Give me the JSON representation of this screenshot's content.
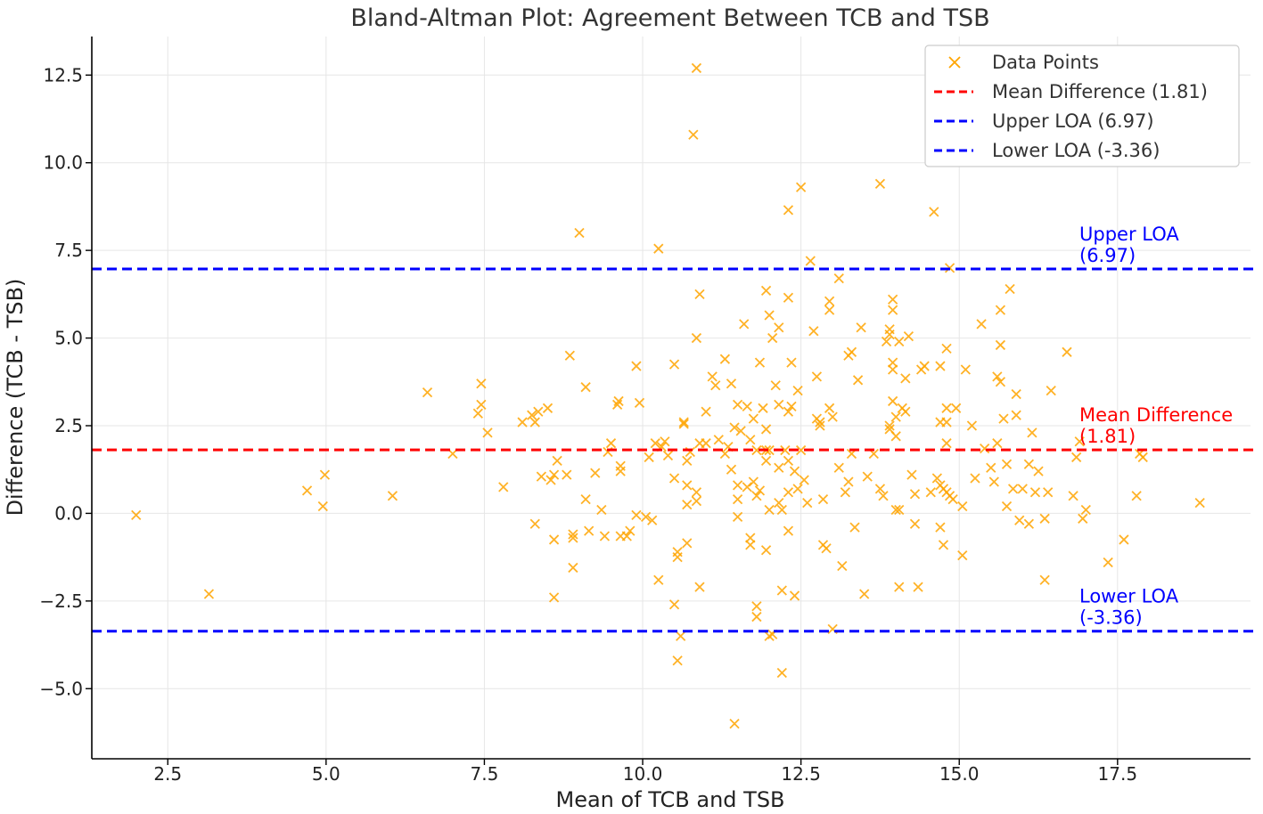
{
  "chart_data": {
    "type": "scatter",
    "title": "Bland-Altman Plot: Agreement Between TCB and TSB",
    "xlabel": "Mean of TCB and TSB",
    "ylabel": "Difference (TCB - TSB)",
    "xlim": [
      1.3,
      19.6
    ],
    "ylim": [
      -7.0,
      13.6
    ],
    "xticks": [
      2.5,
      5.0,
      7.5,
      10.0,
      12.5,
      15.0,
      17.5
    ],
    "xtick_labels": [
      "2.5",
      "5.0",
      "7.5",
      "10.0",
      "12.5",
      "15.0",
      "17.5"
    ],
    "yticks": [
      -5.0,
      -2.5,
      0.0,
      2.5,
      5.0,
      7.5,
      10.0,
      12.5
    ],
    "ytick_labels": [
      "−5.0",
      "−2.5",
      "0.0",
      "2.5",
      "5.0",
      "7.5",
      "10.0",
      "12.5"
    ],
    "grid": true,
    "legend_position": "top-right",
    "colors": {
      "points": "#ffa500",
      "mean": "#ff0000",
      "loa": "#0000ff",
      "axis": "#000000",
      "grid": "#e6e6e6"
    },
    "series": [
      {
        "name": "Data Points",
        "marker": "x",
        "points": [
          [
            2.0,
            -0.05
          ],
          [
            3.15,
            -2.3
          ],
          [
            4.7,
            0.65
          ],
          [
            4.95,
            0.2
          ],
          [
            4.98,
            1.1
          ],
          [
            6.05,
            0.5
          ],
          [
            6.6,
            3.45
          ],
          [
            7.0,
            1.7
          ],
          [
            7.4,
            2.85
          ],
          [
            7.45,
            3.1
          ],
          [
            7.45,
            3.7
          ],
          [
            7.55,
            2.3
          ],
          [
            7.8,
            0.75
          ],
          [
            8.1,
            2.6
          ],
          [
            8.25,
            2.8
          ],
          [
            8.3,
            2.6
          ],
          [
            8.3,
            -0.3
          ],
          [
            8.35,
            2.9
          ],
          [
            8.4,
            1.05
          ],
          [
            8.5,
            3.0
          ],
          [
            8.55,
            0.95
          ],
          [
            8.6,
            1.1
          ],
          [
            8.6,
            -0.75
          ],
          [
            8.6,
            -2.4
          ],
          [
            8.65,
            1.5
          ],
          [
            8.8,
            1.1
          ],
          [
            8.85,
            4.5
          ],
          [
            8.9,
            -0.6
          ],
          [
            8.9,
            -0.7
          ],
          [
            8.9,
            -1.55
          ],
          [
            9.0,
            8.0
          ],
          [
            9.1,
            3.6
          ],
          [
            9.1,
            0.4
          ],
          [
            9.15,
            -0.5
          ],
          [
            9.25,
            1.15
          ],
          [
            9.35,
            0.1
          ],
          [
            9.4,
            -0.65
          ],
          [
            9.45,
            1.75
          ],
          [
            9.5,
            2.0
          ],
          [
            9.6,
            3.1
          ],
          [
            9.62,
            3.2
          ],
          [
            9.65,
            1.2
          ],
          [
            9.65,
            1.35
          ],
          [
            9.65,
            -0.65
          ],
          [
            9.75,
            -0.65
          ],
          [
            9.8,
            -0.5
          ],
          [
            9.9,
            4.2
          ],
          [
            9.9,
            -0.05
          ],
          [
            9.95,
            3.15
          ],
          [
            10.05,
            -0.1
          ],
          [
            10.1,
            1.6
          ],
          [
            10.15,
            -0.2
          ],
          [
            10.2,
            2.0
          ],
          [
            10.25,
            7.55
          ],
          [
            10.25,
            -1.9
          ],
          [
            10.3,
            1.9
          ],
          [
            10.35,
            2.05
          ],
          [
            10.4,
            1.65
          ],
          [
            10.5,
            4.25
          ],
          [
            10.5,
            1.0
          ],
          [
            10.5,
            -2.6
          ],
          [
            10.55,
            -1.1
          ],
          [
            10.55,
            -1.25
          ],
          [
            10.55,
            -4.2
          ],
          [
            10.6,
            -3.5
          ],
          [
            10.65,
            2.55
          ],
          [
            10.65,
            2.6
          ],
          [
            10.7,
            1.5
          ],
          [
            10.7,
            0.8
          ],
          [
            10.7,
            0.25
          ],
          [
            10.7,
            -0.85
          ],
          [
            10.75,
            1.75
          ],
          [
            10.8,
            10.8
          ],
          [
            10.85,
            12.7
          ],
          [
            10.85,
            5.0
          ],
          [
            10.85,
            0.6
          ],
          [
            10.85,
            0.35
          ],
          [
            10.9,
            6.25
          ],
          [
            10.9,
            2.0
          ],
          [
            10.9,
            -2.1
          ],
          [
            11.0,
            2.9
          ],
          [
            11.0,
            2.0
          ],
          [
            11.1,
            3.9
          ],
          [
            11.15,
            3.65
          ],
          [
            11.2,
            2.1
          ],
          [
            11.3,
            1.7
          ],
          [
            11.3,
            4.4
          ],
          [
            11.35,
            1.9
          ],
          [
            11.4,
            3.7
          ],
          [
            11.4,
            1.25
          ],
          [
            11.45,
            2.45
          ],
          [
            11.45,
            -6.0
          ],
          [
            11.5,
            3.1
          ],
          [
            11.5,
            0.8
          ],
          [
            11.5,
            0.4
          ],
          [
            11.5,
            -0.1
          ],
          [
            11.55,
            2.35
          ],
          [
            11.6,
            5.4
          ],
          [
            11.65,
            3.05
          ],
          [
            11.65,
            0.75
          ],
          [
            11.7,
            2.1
          ],
          [
            11.7,
            -0.7
          ],
          [
            11.7,
            -0.9
          ],
          [
            11.75,
            2.7
          ],
          [
            11.75,
            0.9
          ],
          [
            11.8,
            1.8
          ],
          [
            11.8,
            0.5
          ],
          [
            11.8,
            -2.65
          ],
          [
            11.8,
            -2.95
          ],
          [
            11.85,
            4.3
          ],
          [
            11.85,
            0.65
          ],
          [
            11.9,
            3.0
          ],
          [
            11.95,
            6.35
          ],
          [
            11.95,
            2.4
          ],
          [
            11.95,
            1.8
          ],
          [
            11.95,
            1.5
          ],
          [
            11.95,
            -1.05
          ],
          [
            12.0,
            5.65
          ],
          [
            12.0,
            1.8
          ],
          [
            12.0,
            0.1
          ],
          [
            12.0,
            -3.5
          ],
          [
            12.05,
            5.0
          ],
          [
            12.05,
            -3.45
          ],
          [
            12.1,
            3.65
          ],
          [
            12.15,
            5.3
          ],
          [
            12.15,
            3.1
          ],
          [
            12.15,
            1.3
          ],
          [
            12.15,
            0.3
          ],
          [
            12.2,
            0.1
          ],
          [
            12.2,
            -2.2
          ],
          [
            12.2,
            -4.55
          ],
          [
            12.25,
            1.8
          ],
          [
            12.3,
            8.65
          ],
          [
            12.3,
            6.15
          ],
          [
            12.3,
            2.9
          ],
          [
            12.3,
            1.5
          ],
          [
            12.3,
            0.6
          ],
          [
            12.3,
            -0.5
          ],
          [
            12.35,
            4.3
          ],
          [
            12.35,
            3.05
          ],
          [
            12.4,
            1.2
          ],
          [
            12.4,
            -2.35
          ],
          [
            12.45,
            3.5
          ],
          [
            12.45,
            0.7
          ],
          [
            12.5,
            9.3
          ],
          [
            12.5,
            1.8
          ],
          [
            12.55,
            0.95
          ],
          [
            12.6,
            0.3
          ],
          [
            12.65,
            7.2
          ],
          [
            12.7,
            5.2
          ],
          [
            12.75,
            3.9
          ],
          [
            12.75,
            2.7
          ],
          [
            12.8,
            2.6
          ],
          [
            12.8,
            2.5
          ],
          [
            12.85,
            0.4
          ],
          [
            12.85,
            -0.9
          ],
          [
            12.9,
            -1.0
          ],
          [
            12.95,
            6.05
          ],
          [
            12.95,
            5.8
          ],
          [
            12.95,
            3.0
          ],
          [
            13.0,
            2.75
          ],
          [
            13.0,
            -3.3
          ],
          [
            13.1,
            6.7
          ],
          [
            13.1,
            1.3
          ],
          [
            13.15,
            -1.5
          ],
          [
            13.2,
            0.6
          ],
          [
            13.25,
            0.9
          ],
          [
            13.25,
            4.5
          ],
          [
            13.3,
            4.6
          ],
          [
            13.3,
            1.7
          ],
          [
            13.35,
            -0.4
          ],
          [
            13.4,
            3.8
          ],
          [
            13.45,
            5.3
          ],
          [
            13.5,
            -2.3
          ],
          [
            13.55,
            1.05
          ],
          [
            13.65,
            1.7
          ],
          [
            13.75,
            9.4
          ],
          [
            13.75,
            0.7
          ],
          [
            13.8,
            0.5
          ],
          [
            13.85,
            4.9
          ],
          [
            13.9,
            5.25
          ],
          [
            13.9,
            5.1
          ],
          [
            13.9,
            2.5
          ],
          [
            13.9,
            2.4
          ],
          [
            13.95,
            6.1
          ],
          [
            13.95,
            5.8
          ],
          [
            13.95,
            4.3
          ],
          [
            13.95,
            4.1
          ],
          [
            13.95,
            3.2
          ],
          [
            14.0,
            2.75
          ],
          [
            14.0,
            2.2
          ],
          [
            14.0,
            0.1
          ],
          [
            14.05,
            4.9
          ],
          [
            14.05,
            0.1
          ],
          [
            14.05,
            -2.1
          ],
          [
            14.1,
            3.0
          ],
          [
            14.15,
            2.9
          ],
          [
            14.15,
            3.85
          ],
          [
            14.2,
            5.05
          ],
          [
            14.25,
            1.1
          ],
          [
            14.3,
            0.55
          ],
          [
            14.3,
            -0.3
          ],
          [
            14.35,
            -2.1
          ],
          [
            14.4,
            4.1
          ],
          [
            14.45,
            4.2
          ],
          [
            14.55,
            0.6
          ],
          [
            14.6,
            8.6
          ],
          [
            14.65,
            1.0
          ],
          [
            14.7,
            4.2
          ],
          [
            14.7,
            2.6
          ],
          [
            14.7,
            0.8
          ],
          [
            14.7,
            -0.4
          ],
          [
            14.75,
            -0.9
          ],
          [
            14.75,
            0.7
          ],
          [
            14.8,
            4.7
          ],
          [
            14.8,
            3.0
          ],
          [
            14.8,
            2.6
          ],
          [
            14.8,
            2.0
          ],
          [
            14.8,
            0.6
          ],
          [
            14.85,
            7.0
          ],
          [
            14.85,
            0.5
          ],
          [
            14.9,
            0.4
          ],
          [
            14.95,
            3.0
          ],
          [
            15.05,
            0.2
          ],
          [
            15.05,
            -1.2
          ],
          [
            15.1,
            4.1
          ],
          [
            15.2,
            2.5
          ],
          [
            15.25,
            1.0
          ],
          [
            15.35,
            5.4
          ],
          [
            15.4,
            1.85
          ],
          [
            15.5,
            1.3
          ],
          [
            15.55,
            0.9
          ],
          [
            15.6,
            2.0
          ],
          [
            15.6,
            3.9
          ],
          [
            15.65,
            5.8
          ],
          [
            15.65,
            4.8
          ],
          [
            15.65,
            3.75
          ],
          [
            15.7,
            2.7
          ],
          [
            15.75,
            0.2
          ],
          [
            15.75,
            1.4
          ],
          [
            15.8,
            6.4
          ],
          [
            15.85,
            0.7
          ],
          [
            15.9,
            2.8
          ],
          [
            15.9,
            3.4
          ],
          [
            15.95,
            -0.2
          ],
          [
            16.0,
            0.7
          ],
          [
            16.1,
            -0.3
          ],
          [
            16.1,
            1.4
          ],
          [
            16.15,
            2.3
          ],
          [
            16.2,
            0.6
          ],
          [
            16.25,
            1.2
          ],
          [
            16.35,
            -0.15
          ],
          [
            16.35,
            -1.9
          ],
          [
            16.4,
            0.6
          ],
          [
            16.45,
            3.5
          ],
          [
            16.7,
            4.6
          ],
          [
            16.8,
            0.5
          ],
          [
            16.85,
            1.6
          ],
          [
            16.9,
            2.05
          ],
          [
            16.95,
            -0.15
          ],
          [
            17.0,
            0.1
          ],
          [
            17.35,
            -1.4
          ],
          [
            17.6,
            -0.75
          ],
          [
            17.8,
            0.5
          ],
          [
            17.85,
            1.7
          ],
          [
            17.9,
            1.6
          ],
          [
            18.8,
            0.3
          ]
        ]
      }
    ],
    "lines": [
      {
        "name": "Mean Difference (1.81)",
        "y": 1.81,
        "color": "#ff0000",
        "style": "dashed",
        "annotation": [
          "Mean Difference",
          "(1.81)"
        ]
      },
      {
        "name": "Upper LOA (6.97)",
        "y": 6.97,
        "color": "#0000ff",
        "style": "dashed",
        "annotation": [
          "Upper LOA",
          "(6.97)"
        ]
      },
      {
        "name": "Lower LOA (-3.36)",
        "y": -3.36,
        "color": "#0000ff",
        "style": "dashed",
        "annotation": [
          "Lower LOA",
          "(-3.36)"
        ]
      }
    ],
    "legend": [
      "Data Points",
      "Mean Difference (1.81)",
      "Upper LOA (6.97)",
      "Lower LOA (-3.36)"
    ]
  }
}
